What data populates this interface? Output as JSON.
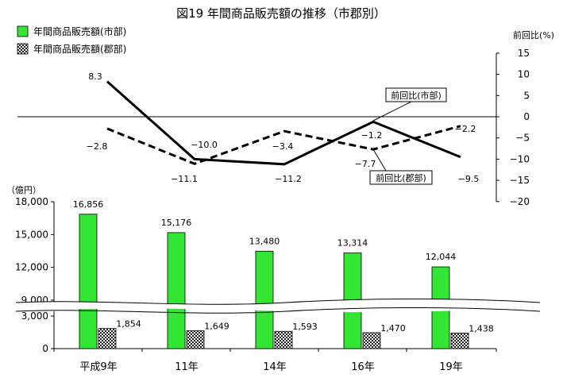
{
  "chart_data": {
    "title": "図19  年間商品販売額の推移（市郡別）",
    "type": "bar+line",
    "categories": [
      "平成9年",
      "11年",
      "14年",
      "16年",
      "19年"
    ],
    "legend": [
      {
        "label": "年間商品販売額(市部)",
        "color": "#33e633",
        "pattern": "solid"
      },
      {
        "label": "年間商品販売額(郡部)",
        "color": "#222222",
        "pattern": "checker"
      }
    ],
    "bar_axis": {
      "label": "（億円）",
      "ticks_upper": [
        "9,000",
        "12,000",
        "15,000",
        "18,000"
      ],
      "ticks_lower": [
        "0",
        "3,000"
      ],
      "break_between": [
        3000,
        9000
      ]
    },
    "bars": {
      "city": {
        "values": [
          16856,
          15176,
          13480,
          13314,
          12044
        ],
        "labels": [
          "16,856",
          "15,176",
          "13,480",
          "13,314",
          "12,044"
        ]
      },
      "county": {
        "values": [
          1854,
          1649,
          1593,
          1470,
          1438
        ],
        "labels": [
          "1,854",
          "1,649",
          "1,593",
          "1,470",
          "1,438"
        ]
      }
    },
    "line_axis": {
      "label": "前回比(%)",
      "ylim": [
        -20,
        15
      ],
      "ticks": [
        "15",
        "10",
        "5",
        "0",
        "−5",
        "−10",
        "−15",
        "−20"
      ]
    },
    "lines": {
      "city": {
        "values": [
          8.3,
          -10.0,
          -11.2,
          -1.2,
          -9.5
        ],
        "labels": [
          "8.3",
          "−10.0",
          "−11.2",
          "−1.2",
          "−9.5"
        ],
        "callout": "前回比(市部)",
        "style": "solid"
      },
      "county": {
        "values": [
          -2.8,
          -11.1,
          -3.4,
          -7.7,
          -2.2
        ],
        "labels": [
          "−2.8",
          "−11.1",
          "−3.4",
          "−7.7",
          "−2.2"
        ],
        "callout": "前回比(郡部)",
        "style": "dashed"
      }
    }
  }
}
